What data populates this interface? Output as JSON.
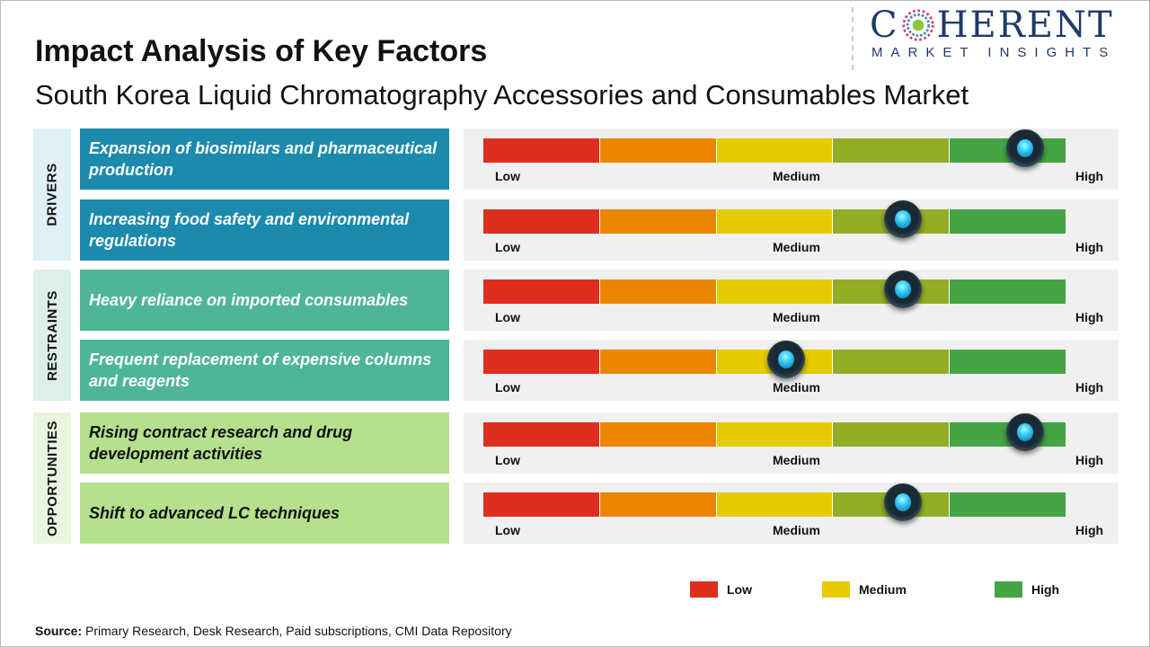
{
  "title": "Impact Analysis of Key Factors",
  "subtitle": "South Korea Liquid Chromatography Accessories and Consumables Market",
  "logo": {
    "main_left": "C",
    "main_right": "HERENT",
    "sub": "MARKET INSIGHTS"
  },
  "scale": {
    "low": "Low",
    "medium": "Medium",
    "high": "High",
    "segment_colors": [
      "#de2f1e",
      "#ec8500",
      "#e4cc00",
      "#92ae26",
      "#45a545"
    ]
  },
  "categories": [
    {
      "name": "DRIVERS",
      "color": "#1b8aad",
      "bg": "#dff0f7",
      "text_color": "#ffffff",
      "factors": [
        {
          "label": "Expansion of biosimilars and pharmaceutical production",
          "level": 0.93
        },
        {
          "label": "Increasing food safety and environmental regulations",
          "level": 0.72
        }
      ]
    },
    {
      "name": "RESTRAINTS",
      "color": "#4eb598",
      "bg": "#ddefea",
      "text_color": "#ffffff",
      "factors": [
        {
          "label": "Heavy reliance on imported consumables",
          "level": 0.72
        },
        {
          "label": "Frequent replacement of expensive columns and reagents",
          "level": 0.52
        }
      ]
    },
    {
      "name": "OPPORTUNITIES",
      "color": "#b5e08d",
      "bg": "#eaf5e0",
      "text_color": "#111111",
      "factors": [
        {
          "label": "Rising contract research and drug development activities",
          "level": 0.93
        },
        {
          "label": "Shift to advanced LC techniques",
          "level": 0.72
        }
      ]
    }
  ],
  "legend": [
    {
      "label": "Low",
      "color": "#de2f1e"
    },
    {
      "label": "Medium",
      "color": "#e4cc00"
    },
    {
      "label": "High",
      "color": "#45a545"
    }
  ],
  "source": {
    "label": "Source:",
    "text": " Primary Research, Desk Research, Paid subscriptions, CMI Data Repository"
  }
}
